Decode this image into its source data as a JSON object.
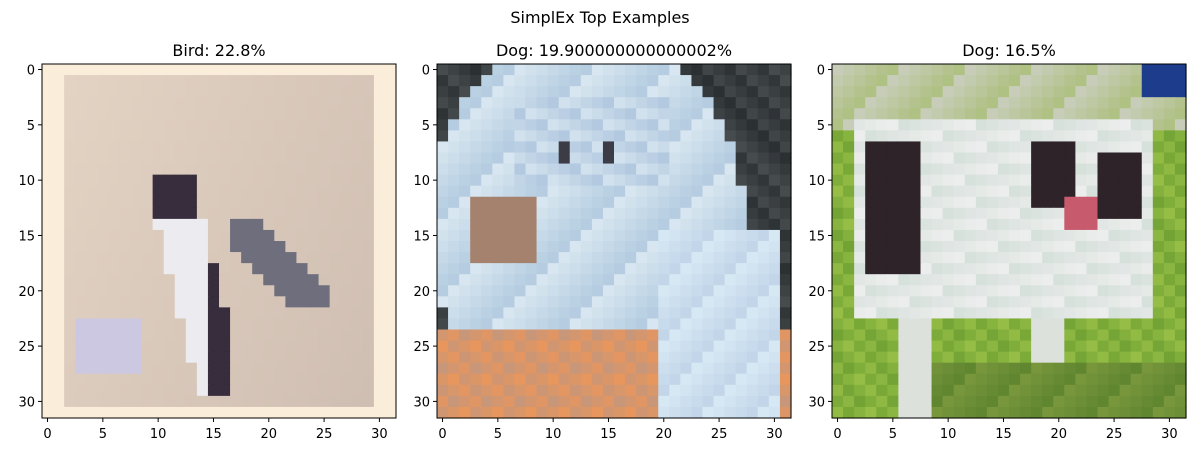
{
  "figure": {
    "suptitle": "SimplEx Top Examples"
  },
  "chart_data": [
    {
      "type": "image",
      "title": "Bird: 22.8%",
      "label": "Bird",
      "weight_percent": 22.8,
      "image_size": [
        32,
        32
      ],
      "xlim": [
        -0.5,
        31.5
      ],
      "ylim": [
        31.5,
        -0.5
      ],
      "xticks": [
        0,
        5,
        10,
        15,
        20,
        25,
        30
      ],
      "yticks": [
        0,
        5,
        10,
        15,
        20,
        25,
        30
      ],
      "grid": false
    },
    {
      "type": "image",
      "title": "Dog: 19.900000000000002%",
      "label": "Dog",
      "weight_percent": 19.900000000000002,
      "image_size": [
        32,
        32
      ],
      "xlim": [
        -0.5,
        31.5
      ],
      "ylim": [
        31.5,
        -0.5
      ],
      "xticks": [
        0,
        5,
        10,
        15,
        20,
        25,
        30
      ],
      "yticks": [
        0,
        5,
        10,
        15,
        20,
        25,
        30
      ],
      "grid": false
    },
    {
      "type": "image",
      "title": "Dog: 16.5%",
      "label": "Dog",
      "weight_percent": 16.5,
      "image_size": [
        32,
        32
      ],
      "xlim": [
        -0.5,
        31.5
      ],
      "ylim": [
        31.5,
        -0.5
      ],
      "xticks": [
        0,
        5,
        10,
        15,
        20,
        25,
        30
      ],
      "yticks": [
        0,
        5,
        10,
        15,
        20,
        25,
        30
      ],
      "grid": false
    }
  ]
}
